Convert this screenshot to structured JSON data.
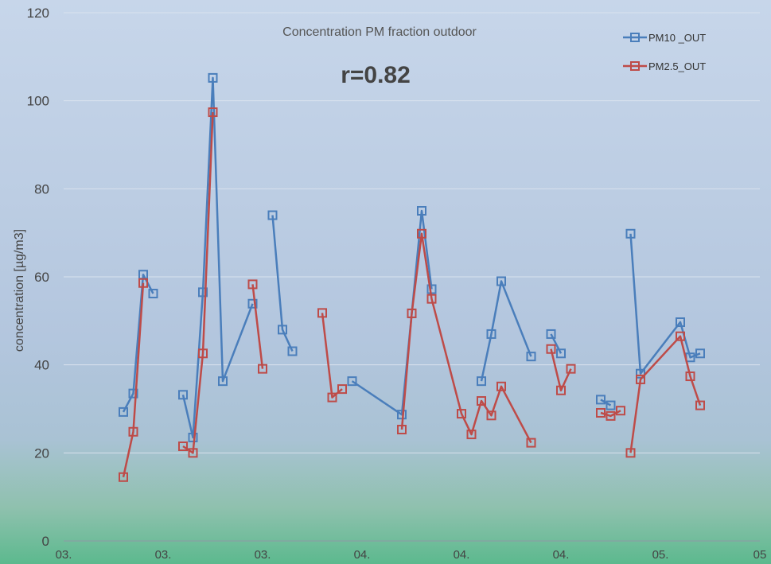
{
  "chart_data": {
    "type": "line",
    "title": "Concentration PM fraction outdoor",
    "annotation": "r=0.82",
    "ylabel": "concentration [µg/m3]",
    "ylim": [
      0,
      120
    ],
    "yticks": [
      0,
      20,
      40,
      60,
      80,
      100,
      120
    ],
    "xlim": [
      0,
      7
    ],
    "xtick_labels": [
      "03.",
      "03.",
      "03.",
      "04.",
      "04.",
      "04.",
      "05.",
      "05"
    ],
    "grid": true,
    "legend_position": "top-right",
    "series": [
      {
        "name": "PM10 _OUT",
        "color": "#4a7ebb",
        "segments": [
          [
            [
              0.6,
              29.3
            ],
            [
              0.7,
              33.5
            ],
            [
              0.8,
              60.5
            ],
            [
              0.9,
              56.2
            ]
          ],
          [
            [
              1.2,
              33.2
            ],
            [
              1.3,
              23.5
            ],
            [
              1.4,
              56.5
            ],
            [
              1.5,
              105.2
            ],
            [
              1.6,
              36.3
            ],
            [
              1.9,
              53.9
            ]
          ],
          [
            [
              2.1,
              74
            ],
            [
              2.2,
              48
            ],
            [
              2.3,
              43.1
            ]
          ],
          [
            [
              2.9,
              36.3
            ],
            [
              3.4,
              28.7
            ],
            [
              3.5,
              51.7
            ],
            [
              3.6,
              75
            ],
            [
              3.7,
              57.2
            ]
          ],
          [
            [
              4.2,
              36.3
            ],
            [
              4.3,
              47
            ],
            [
              4.4,
              59
            ],
            [
              4.7,
              41.9
            ]
          ],
          [
            [
              4.9,
              47
            ],
            [
              5.0,
              42.6
            ]
          ],
          [
            [
              5.4,
              32.1
            ],
            [
              5.5,
              30.8
            ]
          ],
          [
            [
              5.7,
              69.8
            ],
            [
              5.8,
              38
            ],
            [
              6.2,
              49.7
            ],
            [
              6.3,
              41.7
            ],
            [
              6.4,
              42.6
            ]
          ]
        ]
      },
      {
        "name": "PM2.5_OUT",
        "color": "#be4b48",
        "segments": [
          [
            [
              0.6,
              14.5
            ],
            [
              0.7,
              24.8
            ],
            [
              0.8,
              58.6
            ]
          ],
          [
            [
              1.2,
              21.5
            ],
            [
              1.3,
              20
            ],
            [
              1.4,
              42.6
            ],
            [
              1.5,
              97.4
            ]
          ],
          [
            [
              1.9,
              58.3
            ],
            [
              2.0,
              39.1
            ]
          ],
          [
            [
              2.6,
              51.8
            ],
            [
              2.7,
              32.6
            ],
            [
              2.8,
              34.5
            ]
          ],
          [
            [
              3.4,
              25.3
            ],
            [
              3.5,
              51.7
            ],
            [
              3.6,
              69.8
            ],
            [
              3.7,
              55
            ],
            [
              4.0,
              28.9
            ],
            [
              4.1,
              24.2
            ],
            [
              4.2,
              31.8
            ],
            [
              4.3,
              28.5
            ],
            [
              4.4,
              35.1
            ],
            [
              4.7,
              22.3
            ]
          ],
          [
            [
              4.9,
              43.6
            ],
            [
              5.0,
              34.2
            ],
            [
              5.1,
              39.1
            ]
          ],
          [
            [
              5.4,
              29.1
            ],
            [
              5.5,
              28.4
            ],
            [
              5.6,
              29.6
            ]
          ],
          [
            [
              5.7,
              20
            ],
            [
              5.8,
              36.7
            ],
            [
              6.2,
              46.5
            ],
            [
              6.3,
              37.4
            ],
            [
              6.4,
              30.8
            ]
          ]
        ]
      }
    ]
  }
}
